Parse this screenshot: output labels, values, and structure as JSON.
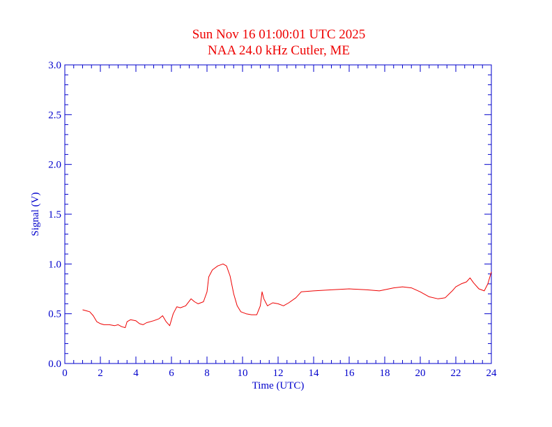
{
  "chart_data": {
    "type": "line",
    "title": "Sun Nov 16 01:00:01 UTC 2025",
    "subtitle": "NAA 24.0 kHz Cutler, ME",
    "xlabel": "Time (UTC)",
    "ylabel": "Signal (V)",
    "xlim": [
      0,
      24
    ],
    "ylim": [
      0.0,
      3.0
    ],
    "x_ticks": [
      "0",
      "2",
      "4",
      "6",
      "8",
      "10",
      "12",
      "14",
      "16",
      "18",
      "20",
      "22",
      "24"
    ],
    "y_ticks": [
      "0.0",
      "0.5",
      "1.0",
      "1.5",
      "2.0",
      "2.5",
      "3.0"
    ],
    "grid": false,
    "colors": {
      "axes": "#0000cc",
      "series": "#ee0000",
      "title": "#ee0000"
    },
    "series": [
      {
        "x": [
          1.0,
          1.2,
          1.4,
          1.6,
          1.8,
          2.0,
          2.2,
          2.5,
          2.8,
          3.0,
          3.2,
          3.4,
          3.5,
          3.7,
          4.0,
          4.2,
          4.4,
          4.6,
          5.0,
          5.3,
          5.5,
          5.7,
          5.9,
          6.1,
          6.3,
          6.5,
          6.8,
          7.1,
          7.3,
          7.5,
          7.8,
          8.0,
          8.1,
          8.3,
          8.6,
          8.9,
          9.1,
          9.3,
          9.5,
          9.7,
          9.9,
          10.2,
          10.5,
          10.8,
          11.0,
          11.1,
          11.2,
          11.4,
          11.7,
          12.0,
          12.3,
          12.6,
          13.0,
          13.3,
          14.0,
          15.0,
          16.0,
          17.0,
          17.7,
          18.5,
          19.0,
          19.5,
          20.0,
          20.5,
          21.0,
          21.4,
          21.8,
          22.0,
          22.3,
          22.6,
          22.8,
          23.0,
          23.3,
          23.6,
          23.8,
          24.0
        ],
        "y": [
          0.54,
          0.53,
          0.52,
          0.48,
          0.42,
          0.4,
          0.39,
          0.39,
          0.38,
          0.39,
          0.37,
          0.36,
          0.42,
          0.44,
          0.43,
          0.4,
          0.39,
          0.41,
          0.43,
          0.45,
          0.48,
          0.42,
          0.38,
          0.5,
          0.57,
          0.56,
          0.58,
          0.65,
          0.62,
          0.6,
          0.62,
          0.72,
          0.87,
          0.94,
          0.98,
          1.0,
          0.98,
          0.88,
          0.7,
          0.58,
          0.52,
          0.5,
          0.49,
          0.49,
          0.58,
          0.72,
          0.65,
          0.58,
          0.61,
          0.6,
          0.58,
          0.61,
          0.66,
          0.72,
          0.73,
          0.74,
          0.75,
          0.74,
          0.73,
          0.76,
          0.77,
          0.76,
          0.72,
          0.67,
          0.65,
          0.66,
          0.73,
          0.77,
          0.8,
          0.82,
          0.86,
          0.81,
          0.75,
          0.73,
          0.8,
          0.92
        ]
      }
    ]
  }
}
